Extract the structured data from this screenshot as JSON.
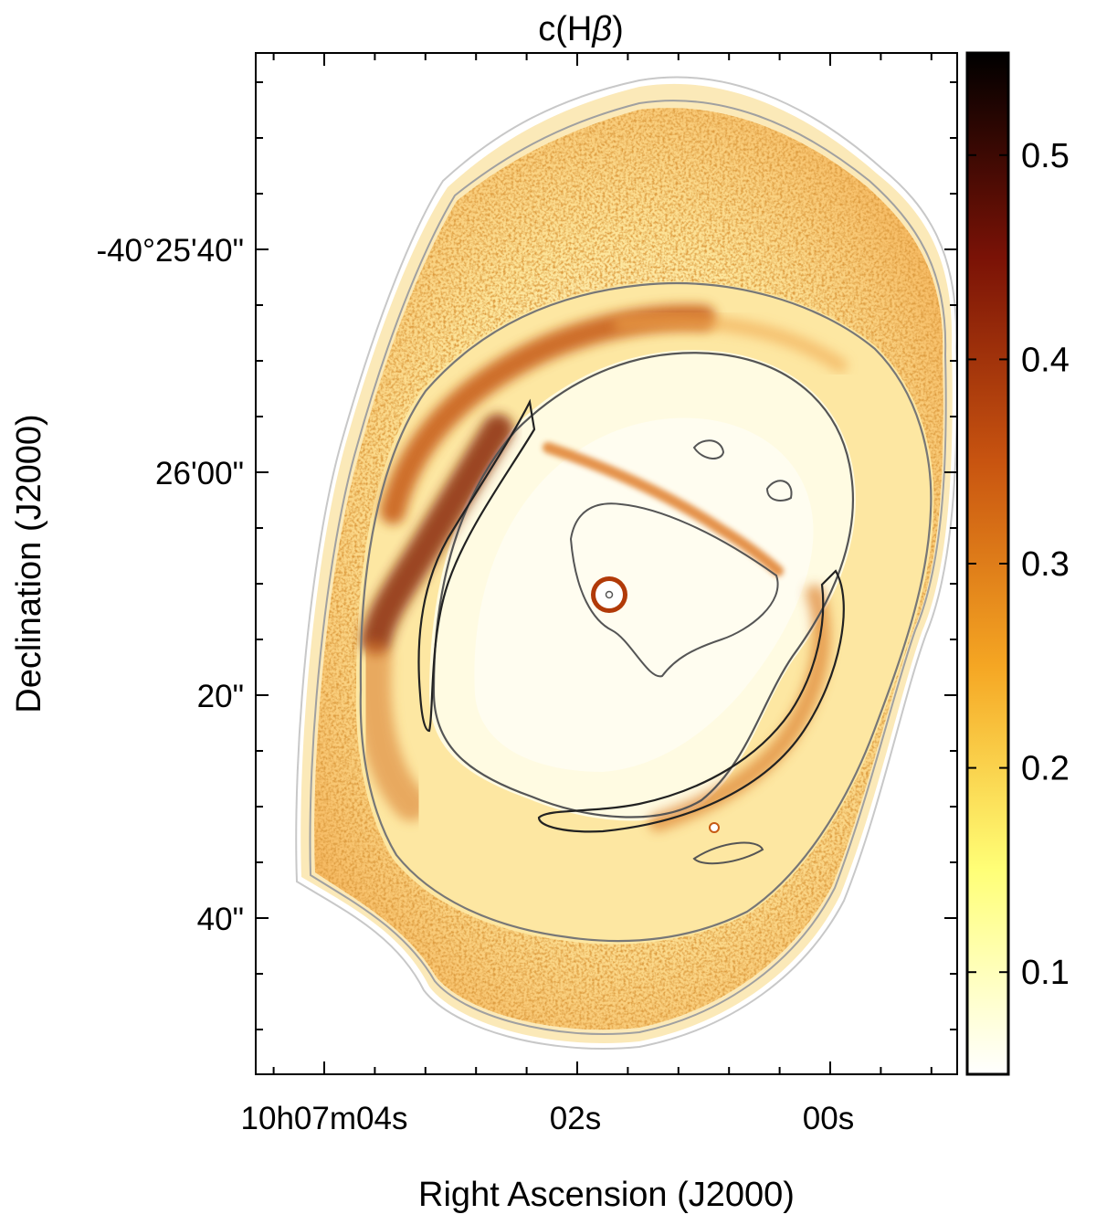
{
  "chart_data": {
    "type": "heatmap",
    "title": "c(Hβ)",
    "title_main": "c(H",
    "title_symbol": "β",
    "title_close": ")",
    "xlabel": "Right Ascension (J2000)",
    "ylabel": "Declination (J2000)",
    "x_ticks": [
      "10h07m04s",
      "02s",
      "00s"
    ],
    "y_ticks": [
      "-40°25'40\"",
      "26'00\"",
      "20\"",
      "40\""
    ],
    "colorbar": {
      "range": [
        0.05,
        0.55
      ],
      "ticks": [
        0.1,
        0.2,
        0.3,
        0.4,
        0.5
      ],
      "tick_labels": [
        "0.1",
        "0.2",
        "0.3",
        "0.4",
        "0.5"
      ],
      "colormap": "afmhot_r",
      "stops": [
        {
          "value": 0.05,
          "color": "#ffffff"
        },
        {
          "value": 0.15,
          "color": "#ffff77"
        },
        {
          "value": 0.25,
          "color": "#f5a623"
        },
        {
          "value": 0.35,
          "color": "#c85410"
        },
        {
          "value": 0.45,
          "color": "#7a1206"
        },
        {
          "value": 0.55,
          "color": "#000000"
        }
      ]
    },
    "features": [
      {
        "name": "background-nebula",
        "value": 0.16
      },
      {
        "name": "inner-cavity",
        "value": 0.1
      },
      {
        "name": "northeast-dust-arc",
        "value": 0.42
      },
      {
        "name": "east-dust-lane",
        "value": 0.46
      },
      {
        "name": "cross-filament",
        "value": 0.34
      },
      {
        "name": "west-arc",
        "value": 0.3
      },
      {
        "name": "central-star",
        "value": 0.05
      }
    ],
    "contours": [
      "outer-light",
      "outer-mid",
      "middle",
      "inner",
      "core"
    ]
  }
}
